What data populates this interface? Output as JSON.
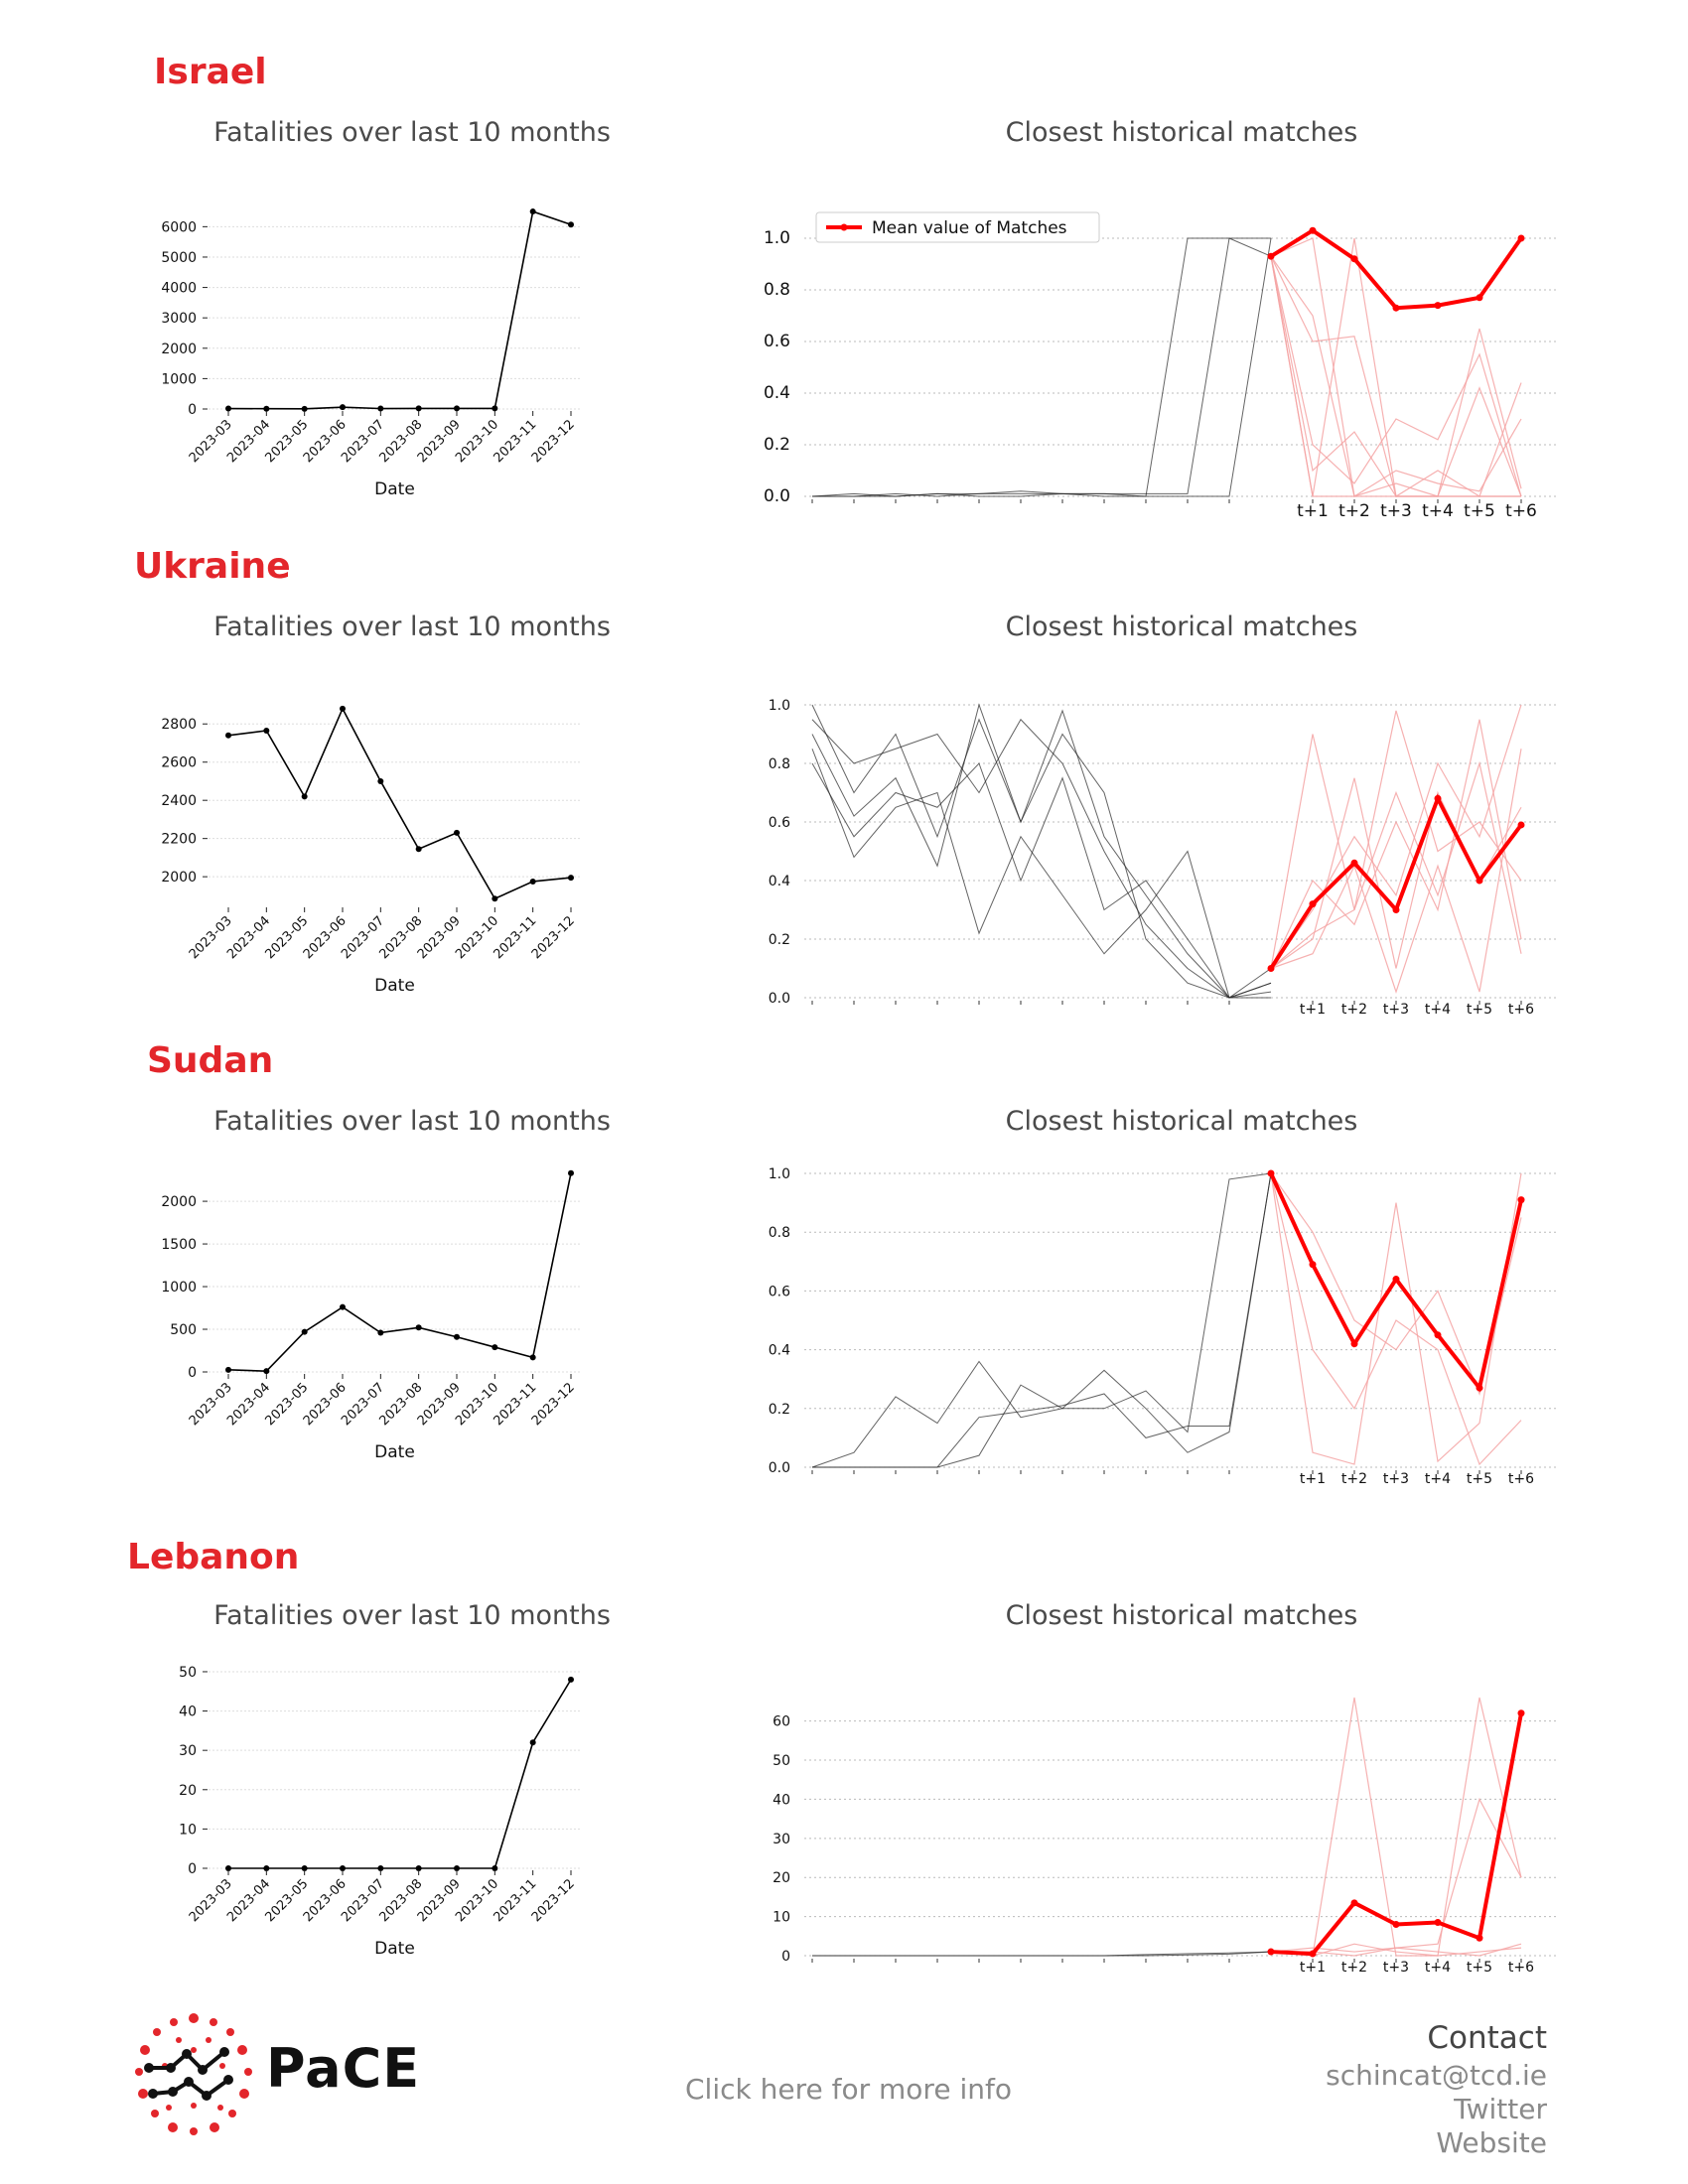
{
  "footer": {
    "brand": "PaCE",
    "more_info": "Click here for more info",
    "contact_heading": "Contact",
    "email": "schincat@tcd.ie",
    "twitter": "Twitter",
    "website": "Website"
  },
  "colors": {
    "country": "#e3262b",
    "mean": "#ff0000",
    "match": "#f4a3a3",
    "history": "#000000"
  },
  "sections": [
    {
      "country": "Israel",
      "left_title": "Fatalities over last 10 months",
      "right_title": "Closest historical matches"
    },
    {
      "country": "Ukraine",
      "left_title": "Fatalities over last 10 months",
      "right_title": "Closest historical matches"
    },
    {
      "country": "Sudan",
      "left_title": "Fatalities over last 10 months",
      "right_title": "Closest historical matches"
    },
    {
      "country": "Lebanon",
      "left_title": "Fatalities over last 10 months",
      "right_title": "Closest historical matches"
    }
  ],
  "chart_data": [
    {
      "type": "line",
      "country": "Israel",
      "title": "Fatalities over last 10 months",
      "xlabel": "Date",
      "ylabel": "",
      "categories": [
        "2023-03",
        "2023-04",
        "2023-05",
        "2023-06",
        "2023-07",
        "2023-08",
        "2023-09",
        "2023-10",
        "2023-11",
        "2023-12"
      ],
      "values": [
        15,
        10,
        5,
        60,
        15,
        20,
        20,
        20,
        6500,
        6070
      ],
      "yticks": [
        0,
        1000,
        2000,
        3000,
        4000,
        5000,
        6000
      ],
      "ylim": [
        0,
        6600
      ],
      "grid": true
    },
    {
      "type": "line",
      "country": "Israel",
      "title": "Closest historical matches",
      "legend": "Mean value of Matches",
      "legend_position": "top-left",
      "future_labels": [
        "t+1",
        "t+2",
        "t+3",
        "t+4",
        "t+5",
        "t+6"
      ],
      "mean": [
        0.93,
        1.03,
        0.92,
        0.73,
        0.74,
        0.77,
        1.0
      ],
      "yticks": [
        "0.0",
        "0.2",
        "0.4",
        "0.6",
        "0.8",
        "1.0"
      ],
      "ylim": [
        0,
        1.0
      ],
      "grid": true
    },
    {
      "type": "line",
      "country": "Ukraine",
      "title": "Fatalities over last 10 months",
      "xlabel": "Date",
      "ylabel": "",
      "categories": [
        "2023-03",
        "2023-04",
        "2023-05",
        "2023-06",
        "2023-07",
        "2023-08",
        "2023-09",
        "2023-10",
        "2023-11",
        "2023-12"
      ],
      "values": [
        2740,
        2765,
        2420,
        2880,
        2500,
        2145,
        2230,
        1885,
        1975,
        1995
      ],
      "yticks": [
        2000,
        2200,
        2400,
        2600,
        2800
      ],
      "ylim": [
        1850,
        2900
      ],
      "grid": true
    },
    {
      "type": "line",
      "country": "Ukraine",
      "title": "Closest historical matches",
      "future_labels": [
        "t+1",
        "t+2",
        "t+3",
        "t+4",
        "t+5",
        "t+6"
      ],
      "mean": [
        0.1,
        0.32,
        0.46,
        0.3,
        0.68,
        0.4,
        0.59
      ],
      "yticks": [
        "0.0",
        "0.2",
        "0.4",
        "0.6",
        "0.8",
        "1.0"
      ],
      "ylim": [
        0,
        1.0
      ],
      "grid": true
    },
    {
      "type": "line",
      "country": "Sudan",
      "title": "Fatalities over last 10 months",
      "xlabel": "Date",
      "ylabel": "",
      "categories": [
        "2023-03",
        "2023-04",
        "2023-05",
        "2023-06",
        "2023-07",
        "2023-08",
        "2023-09",
        "2023-10",
        "2023-11",
        "2023-12"
      ],
      "values": [
        25,
        10,
        470,
        760,
        460,
        520,
        410,
        290,
        170,
        2330
      ],
      "yticks": [
        0,
        500,
        1000,
        1500,
        2000
      ],
      "ylim": [
        0,
        2350
      ],
      "grid": true
    },
    {
      "type": "line",
      "country": "Sudan",
      "title": "Closest historical matches",
      "future_labels": [
        "t+1",
        "t+2",
        "t+3",
        "t+4",
        "t+5",
        "t+6"
      ],
      "mean": [
        1.0,
        0.69,
        0.42,
        0.64,
        0.45,
        0.27,
        0.91
      ],
      "yticks": [
        "0.0",
        "0.2",
        "0.4",
        "0.6",
        "0.8",
        "1.0"
      ],
      "ylim": [
        0,
        1.0
      ],
      "grid": true
    },
    {
      "type": "line",
      "country": "Lebanon",
      "title": "Fatalities over last 10 months",
      "xlabel": "Date",
      "ylabel": "",
      "categories": [
        "2023-03",
        "2023-04",
        "2023-05",
        "2023-06",
        "2023-07",
        "2023-08",
        "2023-09",
        "2023-10",
        "2023-11",
        "2023-12"
      ],
      "values": [
        0,
        0,
        0,
        0,
        0,
        0,
        0,
        0,
        32,
        48
      ],
      "yticks": [
        0,
        10,
        20,
        30,
        40,
        50
      ],
      "ylim": [
        0,
        51
      ],
      "grid": true
    },
    {
      "type": "line",
      "country": "Lebanon",
      "title": "Closest historical matches",
      "future_labels": [
        "t+1",
        "t+2",
        "t+3",
        "t+4",
        "t+5",
        "t+6"
      ],
      "mean": [
        1,
        0.5,
        13.5,
        8,
        8.5,
        4.5,
        62
      ],
      "yticks": [
        "0",
        "10",
        "20",
        "30",
        "40",
        "50",
        "60"
      ],
      "ylim": [
        0,
        66
      ],
      "grid": true
    }
  ]
}
